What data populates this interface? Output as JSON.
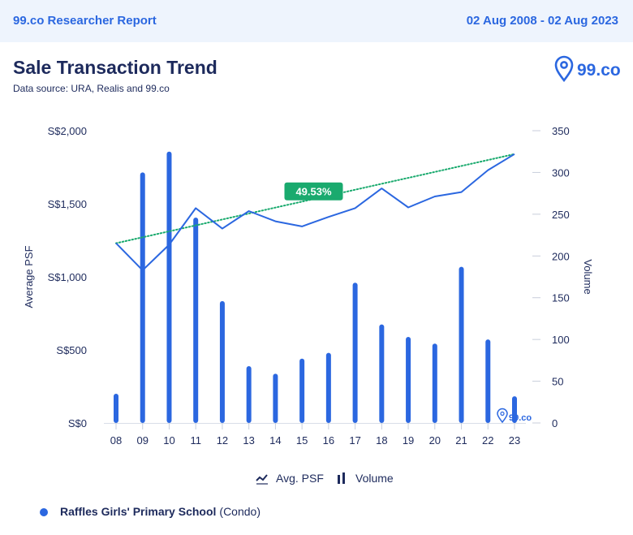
{
  "header": {
    "report_name": "99.co Researcher Report",
    "date_range": "02 Aug 2008 - 02 Aug 2023"
  },
  "title": "Sale Transaction Trend",
  "subtitle": "Data source: URA, Realis and 99.co",
  "logo_text": "99.co",
  "watermark_text": "99.co",
  "legend": {
    "psf_label": "Avg. PSF",
    "volume_label": "Volume"
  },
  "school": {
    "name": "Raffles Girls' Primary School",
    "type": "(Condo)"
  },
  "colors": {
    "brand": "#2b67e0",
    "trend": "#1aaa6e",
    "text": "#1d2a5c"
  },
  "chart_data": {
    "type": "bar",
    "categories": [
      "08",
      "09",
      "10",
      "11",
      "12",
      "13",
      "14",
      "15",
      "16",
      "17",
      "18",
      "19",
      "20",
      "21",
      "22",
      "23"
    ],
    "series": [
      {
        "name": "Volume",
        "type": "bar",
        "axis": "right",
        "values": [
          35,
          300,
          325,
          246,
          146,
          68,
          59,
          77,
          84,
          168,
          118,
          103,
          95,
          187,
          100,
          32
        ]
      },
      {
        "name": "Avg. PSF",
        "type": "line",
        "axis": "left",
        "values": [
          1230,
          1045,
          1220,
          1470,
          1330,
          1450,
          1380,
          1345,
          1410,
          1470,
          1605,
          1475,
          1550,
          1580,
          1730,
          1840
        ]
      }
    ],
    "trendline": {
      "start": 1230,
      "end": 1840,
      "label": "49.53%"
    },
    "ylabel": "Average PSF",
    "ylabel_right": "Volume",
    "ylim": [
      0,
      2000
    ],
    "ylim_right": [
      0,
      350
    ],
    "yticks_left": [
      "S$0",
      "S$500",
      "S$1,000",
      "S$1,500",
      "S$2,000"
    ],
    "yticks_right": [
      "0",
      "50",
      "100",
      "150",
      "200",
      "250",
      "300",
      "350"
    ],
    "grid": false,
    "legend_position": "bottom-center"
  }
}
